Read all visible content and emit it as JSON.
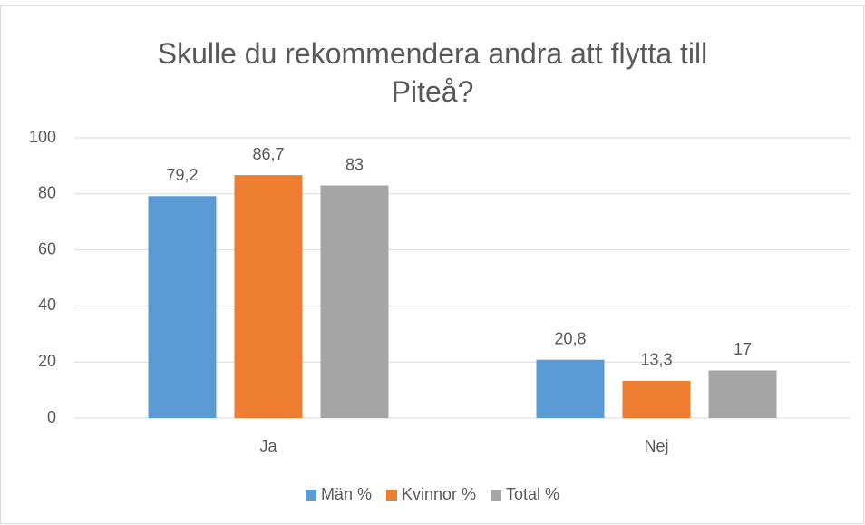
{
  "chart_data": {
    "type": "bar",
    "title": "Skulle du rekommendera andra att flytta till Piteå?",
    "categories": [
      "Ja",
      "Nej"
    ],
    "series": [
      {
        "name": "Män %",
        "color": "#5b9bd5",
        "values": [
          79.2,
          20.8
        ],
        "value_labels": [
          "79,2",
          "20,8"
        ]
      },
      {
        "name": "Kvinnor %",
        "color": "#ed7d31",
        "values": [
          86.7,
          13.3
        ],
        "value_labels": [
          "86,7",
          "13,3"
        ]
      },
      {
        "name": "Total %",
        "color": "#a5a5a5",
        "values": [
          83,
          17
        ],
        "value_labels": [
          "83",
          "17"
        ]
      }
    ],
    "ylim": [
      0,
      100
    ],
    "yticks": [
      0,
      20,
      40,
      60,
      80,
      100
    ],
    "grid": true,
    "legend": "bottom"
  }
}
